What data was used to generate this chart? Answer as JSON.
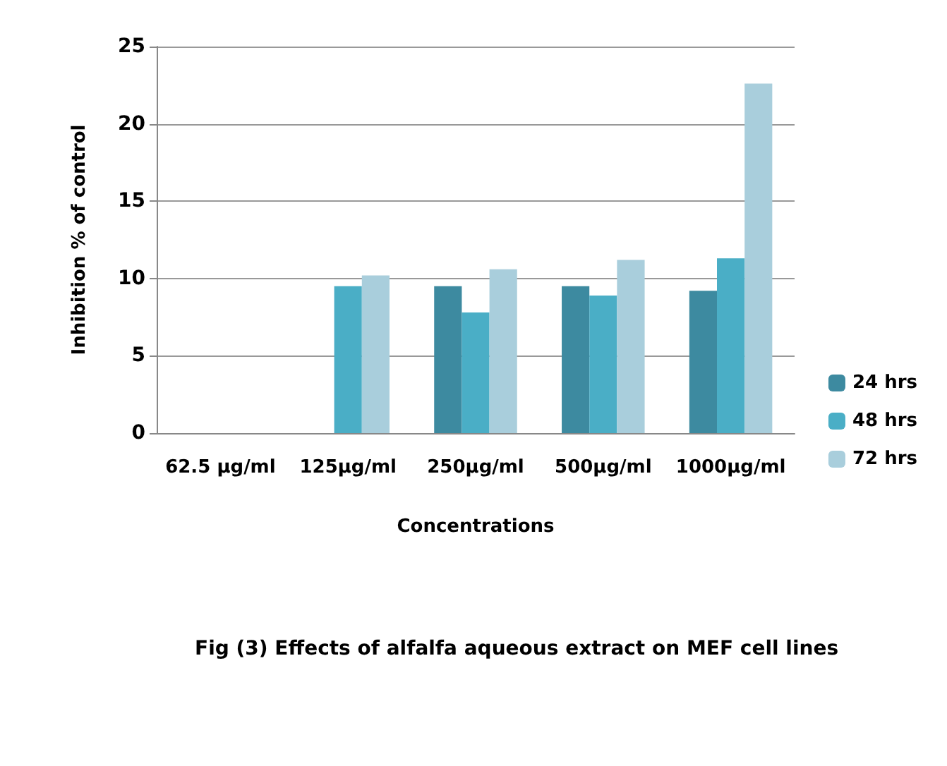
{
  "chart_data": {
    "type": "bar",
    "xlabel": "Concentrations",
    "ylabel": "Inhibition % of control",
    "annotations": [
      "Fig (3) Effects of alfalfa aqueous extract on MEF cell lines"
    ],
    "categories": [
      "62.5 µg/ml",
      "125µg/ml",
      "250µg/ml",
      "500µg/ml",
      "1000µg/ml"
    ],
    "series": [
      {
        "name": "24 hrs",
        "color": "#3d8aa0",
        "values": [
          0,
          0,
          9.5,
          9.5,
          9.2
        ]
      },
      {
        "name": "48 hrs",
        "color": "#4aaec6",
        "values": [
          0,
          9.5,
          7.8,
          8.9,
          11.3
        ]
      },
      {
        "name": "72 hrs",
        "color": "#a9cedc",
        "values": [
          0,
          10.2,
          10.6,
          11.2,
          22.6
        ]
      }
    ],
    "ylim": [
      0,
      25
    ],
    "yticks": [
      0,
      5,
      10,
      15,
      20,
      25
    ],
    "grid": "y",
    "legend": "right"
  }
}
